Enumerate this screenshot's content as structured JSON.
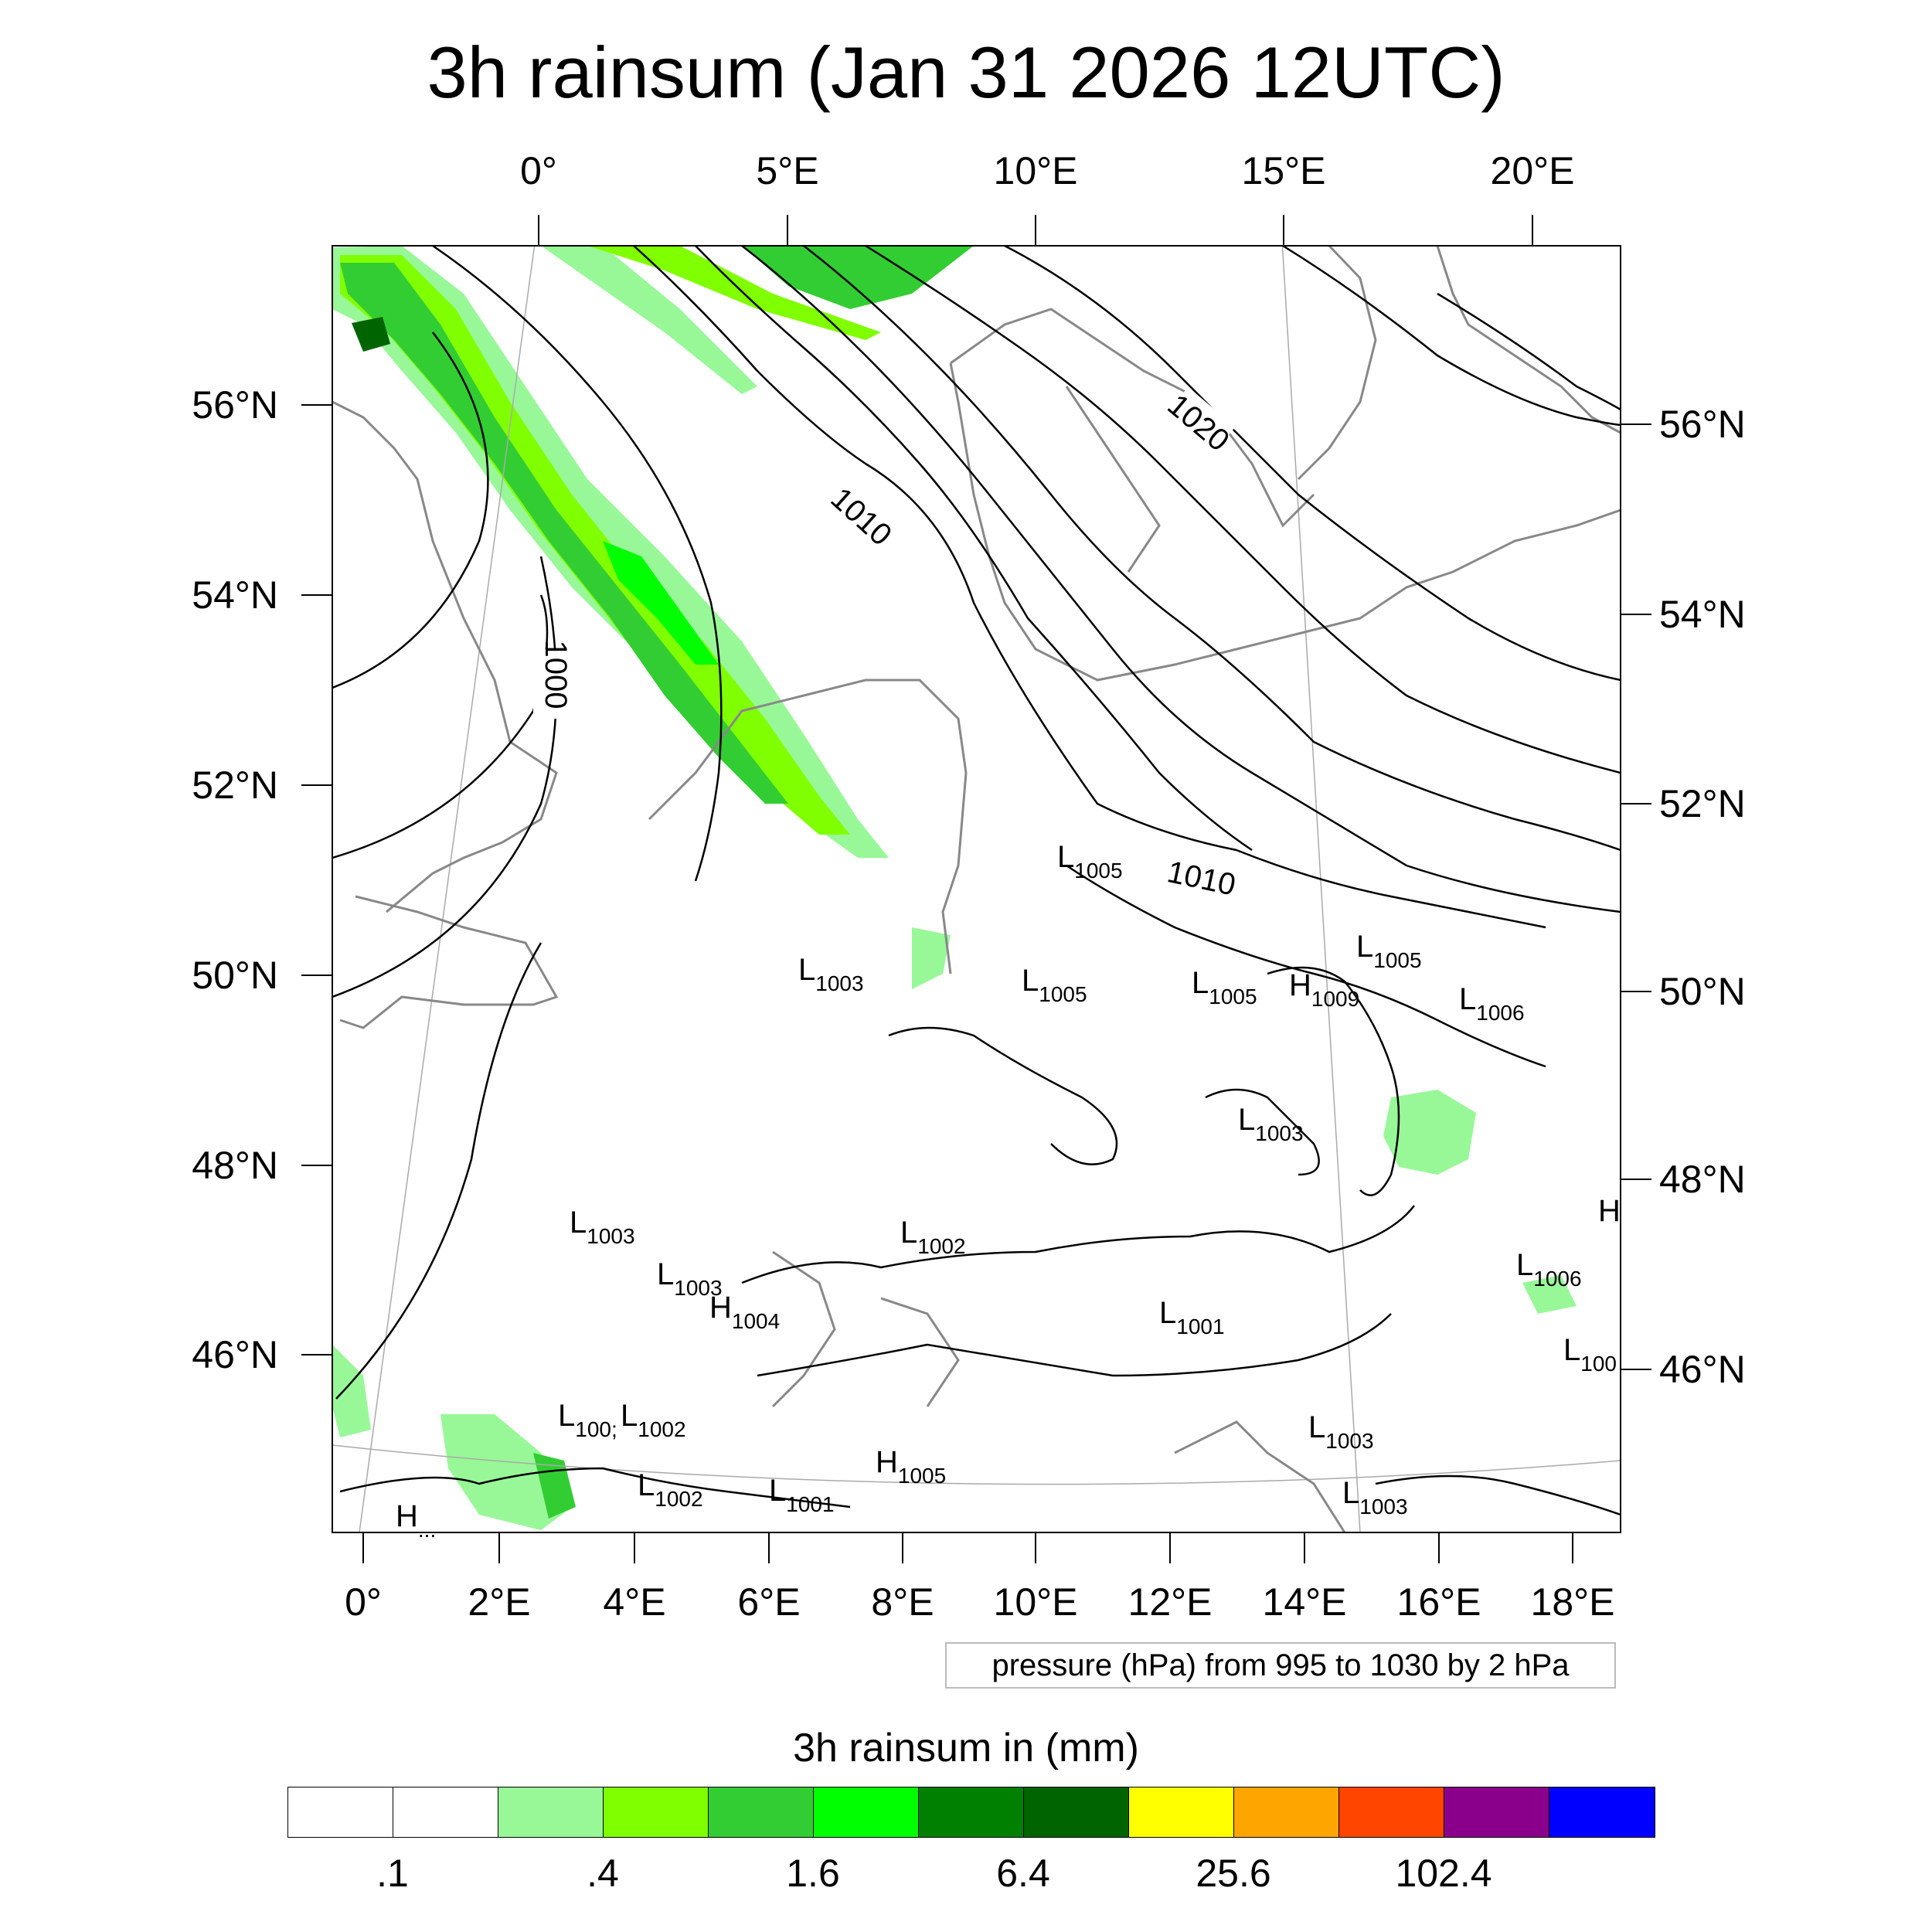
{
  "title": "3h rainsum (Jan 31 2026 12UTC)",
  "top_lon_labels": [
    "0°",
    "5°E",
    "10°E",
    "15°E",
    "20°E"
  ],
  "left_lat_labels": [
    "56°N",
    "54°N",
    "52°N",
    "50°N",
    "48°N",
    "46°N"
  ],
  "right_lat_labels": [
    "56°N",
    "54°N",
    "52°N",
    "50°N",
    "48°N",
    "46°N"
  ],
  "bottom_lon_labels": [
    "0°",
    "2°E",
    "4°E",
    "6°E",
    "8°E",
    "10°E",
    "12°E",
    "14°E",
    "16°E",
    "18°E"
  ],
  "contour_labels": [
    "1020",
    "1010",
    "1000",
    "1010"
  ],
  "pressure_centers": [
    {
      "letter": "L",
      "value": "1005"
    },
    {
      "letter": "L",
      "value": "1003"
    },
    {
      "letter": "L",
      "value": "1005"
    },
    {
      "letter": "L",
      "value": "1005"
    },
    {
      "letter": "H",
      "value": "1009"
    },
    {
      "letter": "L",
      "value": "1005"
    },
    {
      "letter": "L",
      "value": "1006"
    },
    {
      "letter": "L",
      "value": "1003"
    },
    {
      "letter": "H",
      "value": ""
    },
    {
      "letter": "L",
      "value": "1003"
    },
    {
      "letter": "L",
      "value": "1002"
    },
    {
      "letter": "L",
      "value": "1003"
    },
    {
      "letter": "H",
      "value": "1004"
    },
    {
      "letter": "L",
      "value": "1006"
    },
    {
      "letter": "L",
      "value": "1001"
    },
    {
      "letter": "L",
      "value": "100"
    },
    {
      "letter": "L",
      "value": "100;"
    },
    {
      "letter": "L",
      "value": "1002"
    },
    {
      "letter": "L",
      "value": "1003"
    },
    {
      "letter": "H",
      "value": "1005"
    },
    {
      "letter": "L",
      "value": "1002"
    },
    {
      "letter": "L",
      "value": "1001"
    },
    {
      "letter": "L",
      "value": "1003"
    },
    {
      "letter": "H",
      "value": "..."
    }
  ],
  "info_box": "pressure (hPa) from 995 to 1030 by 2 hPa",
  "colorbar": {
    "title": "3h rainsum in (mm)",
    "colors": [
      "#ffffff",
      "#ffffff",
      "#98f898",
      "#80ff00",
      "#32cd32",
      "#00ff00",
      "#008000",
      "#006400",
      "#ffff00",
      "#ffa500",
      "#ff4500",
      "#8b008b",
      "#0000ff"
    ],
    "labels": [
      ".1",
      ".4",
      "1.6",
      "6.4",
      "25.6",
      "102.4"
    ]
  },
  "colors": {
    "contour": "#000000",
    "coastline": "#888888",
    "graticule": "#aaaaaa",
    "rain_light": "#98f898",
    "rain_lime": "#80ff00",
    "rain_green": "#32cd32",
    "rain_bright": "#00ff00",
    "rain_dark": "#008000",
    "rain_darkest": "#006400"
  }
}
